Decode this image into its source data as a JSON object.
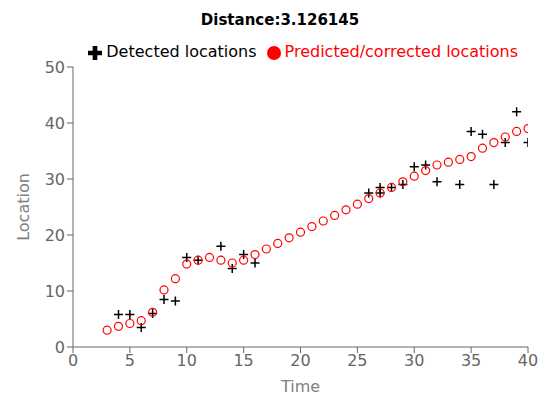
{
  "chart_data": {
    "type": "scatter",
    "title": "Distance:3.126145",
    "x_label": "Time",
    "y_label": "Location",
    "xlim": [
      0,
      40
    ],
    "ylim": [
      0,
      50
    ],
    "xticks": [
      0,
      5,
      10,
      15,
      20,
      25,
      30,
      35,
      40
    ],
    "yticks": [
      0,
      10,
      20,
      30,
      40,
      50
    ],
    "grid": false,
    "legend": "upper right",
    "series": [
      {
        "name": "Detected locations",
        "color": "#000000",
        "marker": "plus",
        "x": [
          4,
          5,
          6,
          7,
          8,
          9,
          10,
          11,
          13,
          14,
          15,
          16,
          26,
          27,
          27,
          28,
          29,
          30,
          31,
          32,
          34,
          35,
          36,
          37,
          38,
          39,
          40
        ],
        "values": [
          5.8,
          5.8,
          3.5,
          6.0,
          8.5,
          8.2,
          16.0,
          15.5,
          18.0,
          14.0,
          16.5,
          15.0,
          27.5,
          28.5,
          27.5,
          28.5,
          29.0,
          32.2,
          32.5,
          29.5,
          29.0,
          38.5,
          38.0,
          29.0,
          36.5,
          42.0,
          36.5
        ]
      },
      {
        "name": "Predicted/corrected locations",
        "color": "#ff0000",
        "marker": "circle",
        "x": [
          3,
          4,
          5,
          6,
          7,
          8,
          9,
          10,
          11,
          12,
          13,
          14,
          15,
          16,
          17,
          18,
          19,
          20,
          21,
          22,
          23,
          24,
          25,
          26,
          27,
          28,
          29,
          30,
          31,
          32,
          33,
          34,
          35,
          36,
          37,
          38,
          39,
          40
        ],
        "values": [
          3.0,
          3.7,
          4.2,
          4.7,
          6.2,
          10.2,
          12.2,
          14.8,
          15.5,
          16.0,
          15.5,
          15.0,
          15.5,
          16.5,
          17.5,
          18.5,
          19.5,
          20.5,
          21.5,
          22.5,
          23.5,
          24.5,
          25.5,
          26.5,
          27.5,
          28.5,
          29.5,
          30.5,
          31.5,
          32.5,
          33.0,
          33.5,
          34.0,
          35.5,
          36.5,
          37.5,
          38.5,
          39.0
        ]
      }
    ]
  }
}
